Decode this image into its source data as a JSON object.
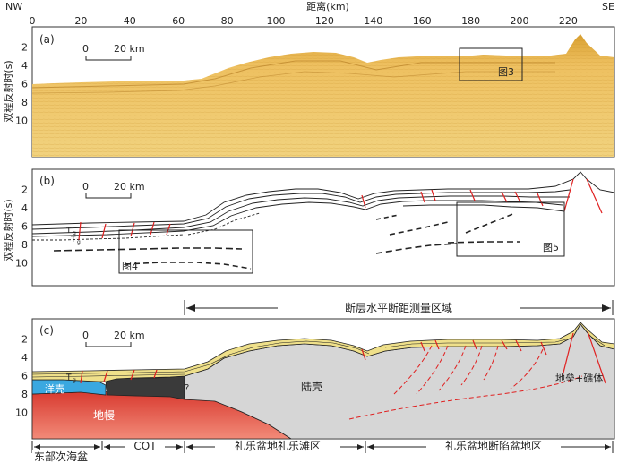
{
  "header": {
    "left_dir": "NW",
    "right_dir": "SE",
    "x_title": "距离(km)",
    "x_ticks": [
      "0",
      "20",
      "40",
      "60",
      "80",
      "100",
      "120",
      "140",
      "160",
      "180",
      "200",
      "220"
    ]
  },
  "y_axis": {
    "label": "双程反射时(s)",
    "ticks": [
      "2",
      "4",
      "6",
      "8",
      "10"
    ]
  },
  "panel_a": {
    "tag": "(a)",
    "scale_zero": "0",
    "scale_text": "20 km",
    "box_label": "图3"
  },
  "panel_b": {
    "tag": "(b)",
    "scale_zero": "0",
    "scale_text": "20 km",
    "box4_label": "图4",
    "box5_label": "图5",
    "layer_t": "T",
    "layer_t_sub": "g",
    "layer_t2": "T",
    "layer_t2_sub": "g"
  },
  "panel_c": {
    "tag": "(c)",
    "scale_zero": "0",
    "scale_text": "20 km",
    "fault_zone_label": "断层水平断距测量区域",
    "ocean_crust": "洋壳",
    "mantle": "地幔",
    "continental_crust": "陆壳",
    "horst_reef": "地垒+礁体",
    "question_mark": "?",
    "layer_t": "T",
    "layer_t_sub": "g"
  },
  "zones": [
    "东部次海盆",
    "COT",
    "礼乐盆地礼乐滩区",
    "礼乐盆地断陷盆地区"
  ],
  "colors": {
    "seismic": "#e6b84a",
    "sediment": "#efe08a",
    "crust": "#d8d8d8",
    "mantle": "#e0453a",
    "ocean": "#3aa8e0",
    "cot": "#3a3a3a",
    "fault": "#e02020"
  }
}
